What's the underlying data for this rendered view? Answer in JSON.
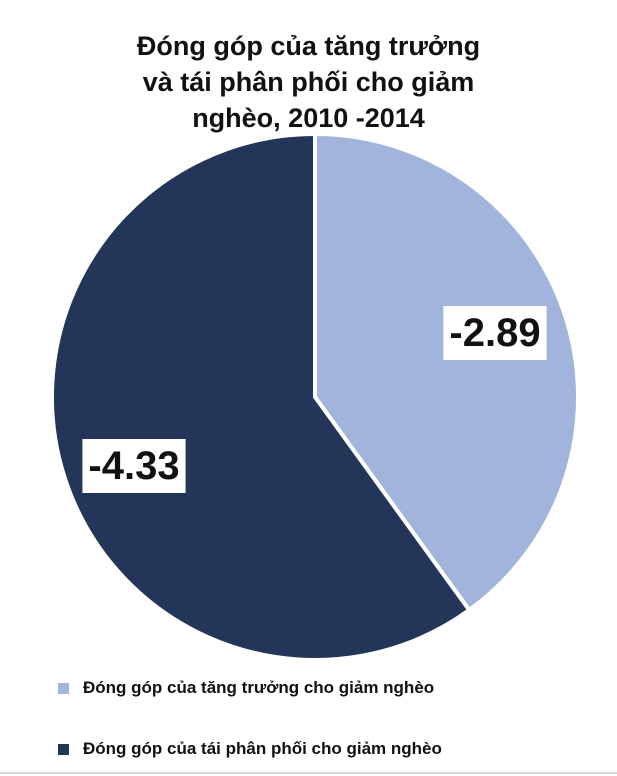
{
  "chart_data": {
    "type": "pie",
    "title_lines": [
      "Đóng góp của tăng trưởng",
      "và tái phân phối cho giảm",
      "nghèo, 2010 -2014"
    ],
    "slices": [
      {
        "label": "Đóng góp của tăng trưởng cho giảm nghèo",
        "value": -2.89,
        "value_label": "-2.89",
        "color": "#a0b4dc"
      },
      {
        "label": "Đóng góp của tái phân phối cho giảm nghèo",
        "value": -4.33,
        "value_label": "-4.33",
        "color": "#233559"
      }
    ],
    "start_angle": "12 o'clock",
    "direction": "clockwise",
    "legend_position": "bottom-left",
    "slice_border_color": "#ffffff",
    "label_box_color": "#ffffff"
  }
}
